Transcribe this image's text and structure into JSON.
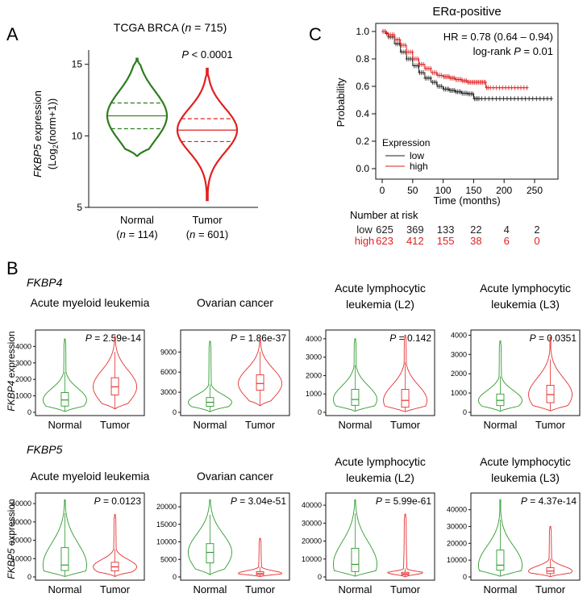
{
  "colors": {
    "normal": "#2e7d1e",
    "tumor": "#e02020",
    "km_low": "#222222",
    "km_high": "#e02020",
    "small_green": "#2f9a2f",
    "small_red": "#e53030"
  },
  "panel_a": {
    "label": "A",
    "title_prefix": "TCGA BRCA (",
    "title_n": "n",
    "title_suffix": " = 715)",
    "ylabel_gene": "FKBP5",
    "ylabel_rest": " expression",
    "ylabel_line2_a": "(Log",
    "ylabel_line2_sub": "2",
    "ylabel_line2_b": "(norm+1))",
    "p_label": "P",
    "p_value": " < 0.0001",
    "groups": [
      {
        "name": "Normal",
        "n_open": "(",
        "n_italic": "n",
        "n_rest": " = 114)"
      },
      {
        "name": "Tumor",
        "n_open": "(",
        "n_italic": "n",
        "n_rest": " = 601)"
      }
    ]
  },
  "panel_b": {
    "label": "B",
    "row_labels": [
      "FKBP4",
      "FKBP5"
    ],
    "ylabel_suffix": " expression",
    "xlabels": [
      "Normal",
      "Tumor"
    ]
  },
  "panel_c": {
    "label": "C",
    "title": "ERα-positive",
    "hr_text": "HR = 0.78 (0.64 – 0.94)",
    "logrank_prefix": "log-rank ",
    "logrank_p": "P",
    "logrank_value": " = 0.01",
    "legend_title": "Expression",
    "risk_title": "Number at risk",
    "risk_rows": [
      {
        "name": "low",
        "values": [
          "625",
          "369",
          "133",
          "22",
          "4",
          "2"
        ]
      },
      {
        "name": "high",
        "values": [
          "623",
          "412",
          "155",
          "38",
          "6",
          "0"
        ]
      }
    ]
  },
  "chart_data": [
    {
      "type": "violin",
      "id": "A",
      "title": "TCGA BRCA (n = 715)",
      "ylabel": "FKBP5 expression (Log2(norm+1))",
      "ylim": [
        5,
        16
      ],
      "yticks": [
        "5",
        "10",
        "15"
      ],
      "ytick_values": [
        5,
        10,
        15
      ],
      "categories": [
        "Normal",
        "Tumor"
      ],
      "series": [
        {
          "name": "Normal",
          "median": 11.4,
          "q1": 10.5,
          "q3": 12.3,
          "min": 8.6,
          "max": 15.4
        },
        {
          "name": "Tumor",
          "median": 10.4,
          "q1": 9.6,
          "q3": 11.2,
          "min": 5.5,
          "max": 14.7
        }
      ],
      "annotation": "P < 0.0001"
    },
    {
      "type": "line",
      "id": "C",
      "title": "ERα-positive",
      "xlabel": "Time (months)",
      "ylabel": "Probability",
      "xlim": [
        0,
        285
      ],
      "ylim": [
        0,
        1
      ],
      "xticks": [
        "0",
        "50",
        "100",
        "150",
        "200",
        "250"
      ],
      "xtick_values": [
        0,
        50,
        100,
        150,
        200,
        250
      ],
      "yticks": [
        "0.0",
        "0.2",
        "0.4",
        "0.6",
        "0.8",
        "1.0"
      ],
      "ytick_values": [
        0,
        0.2,
        0.4,
        0.6,
        0.8,
        1.0
      ],
      "legend": [
        "low",
        "high"
      ],
      "series": [
        {
          "name": "low",
          "x": [
            0,
            5,
            10,
            20,
            30,
            40,
            50,
            60,
            70,
            80,
            90,
            100,
            110,
            120,
            130,
            140,
            150,
            170,
            200,
            250,
            280
          ],
          "y": [
            1.0,
            0.985,
            0.96,
            0.91,
            0.85,
            0.8,
            0.75,
            0.7,
            0.66,
            0.63,
            0.6,
            0.58,
            0.57,
            0.56,
            0.55,
            0.545,
            0.51,
            0.51,
            0.51,
            0.51,
            0.51
          ]
        },
        {
          "name": "high",
          "x": [
            0,
            5,
            10,
            20,
            30,
            40,
            50,
            60,
            70,
            80,
            90,
            100,
            110,
            120,
            130,
            140,
            150,
            160,
            170,
            200,
            240
          ],
          "y": [
            1.0,
            0.99,
            0.975,
            0.94,
            0.9,
            0.85,
            0.8,
            0.76,
            0.73,
            0.7,
            0.68,
            0.67,
            0.66,
            0.65,
            0.64,
            0.63,
            0.63,
            0.63,
            0.59,
            0.59,
            0.59
          ]
        }
      ]
    },
    {
      "type": "violin",
      "id": "B1",
      "gene": "FKBP4",
      "title_lines": [
        "Acute myeloid leukemia"
      ],
      "p_label": "P",
      "p_value": " = 2.59e-14",
      "ylim": [
        0,
        4800
      ],
      "yticks": [
        "0",
        "1000",
        "2000",
        "3000",
        "4000"
      ],
      "ytick_values": [
        0,
        1000,
        2000,
        3000,
        4000
      ],
      "categories": [
        "Normal",
        "Tumor"
      ],
      "series": [
        {
          "name": "Normal",
          "median": 750,
          "q1": 380,
          "q3": 1200,
          "min": 60,
          "max": 4450
        },
        {
          "name": "Tumor",
          "median": 1550,
          "q1": 1050,
          "q3": 2100,
          "min": 220,
          "max": 4600
        }
      ]
    },
    {
      "type": "violin",
      "id": "B2",
      "gene": "FKBP4",
      "title_lines": [
        "Ovarian cancer"
      ],
      "p_label": "P",
      "p_value": " = 1.86e-37",
      "ylim": [
        0,
        11800
      ],
      "yticks": [
        "0",
        "3000",
        "6000",
        "9000"
      ],
      "ytick_values": [
        0,
        3000,
        6000,
        9000
      ],
      "categories": [
        "Normal",
        "Tumor"
      ],
      "series": [
        {
          "name": "Normal",
          "median": 1500,
          "q1": 900,
          "q3": 2200,
          "min": 100,
          "max": 10600
        },
        {
          "name": "Tumor",
          "median": 4300,
          "q1": 3300,
          "q3": 5600,
          "min": 1000,
          "max": 11000
        }
      ]
    },
    {
      "type": "violin",
      "id": "B3",
      "gene": "FKBP4",
      "title_lines": [
        "Acute lymphocytic",
        "leukemia (L2)"
      ],
      "p_label": "P",
      "p_value": " = 0.142",
      "ylim": [
        0,
        4300
      ],
      "yticks": [
        "0",
        "1000",
        "2000",
        "3000",
        "4000"
      ],
      "ytick_values": [
        0,
        1000,
        2000,
        3000,
        4000
      ],
      "categories": [
        "Normal",
        "Tumor"
      ],
      "series": [
        {
          "name": "Normal",
          "median": 700,
          "q1": 380,
          "q3": 1250,
          "min": 70,
          "max": 4000
        },
        {
          "name": "Tumor",
          "median": 650,
          "q1": 280,
          "q3": 1250,
          "min": 40,
          "max": 4200
        }
      ]
    },
    {
      "type": "violin",
      "id": "B4",
      "gene": "FKBP4",
      "title_lines": [
        "Acute lymphocytic",
        "leukemia (L3)"
      ],
      "p_label": "P",
      "p_value": " = 0.0351",
      "ylim": [
        0,
        4100
      ],
      "yticks": [
        "0",
        "1000",
        "2000",
        "3000",
        "4000"
      ],
      "ytick_values": [
        0,
        1000,
        2000,
        3000,
        4000
      ],
      "categories": [
        "Normal",
        "Tumor"
      ],
      "series": [
        {
          "name": "Normal",
          "median": 620,
          "q1": 350,
          "q3": 950,
          "min": 60,
          "max": 3700
        },
        {
          "name": "Tumor",
          "median": 920,
          "q1": 500,
          "q3": 1400,
          "min": 80,
          "max": 3900
        }
      ]
    },
    {
      "type": "violin",
      "id": "B5",
      "gene": "FKBP5",
      "title_lines": [
        "Acute myeloid leukemia"
      ],
      "p_label": "P",
      "p_value": " = 0.0123",
      "ylim": [
        0,
        44000
      ],
      "yticks": [
        "0",
        "10000",
        "20000",
        "30000",
        "40000"
      ],
      "ytick_values": [
        0,
        10000,
        20000,
        30000,
        40000
      ],
      "categories": [
        "Normal",
        "Tumor"
      ],
      "series": [
        {
          "name": "Normal",
          "median": 6500,
          "q1": 3500,
          "q3": 16000,
          "min": 300,
          "max": 42000
        },
        {
          "name": "Tumor",
          "median": 5500,
          "q1": 3300,
          "q3": 8000,
          "min": 300,
          "max": 34000
        }
      ]
    },
    {
      "type": "violin",
      "id": "B6",
      "gene": "FKBP5",
      "title_lines": [
        "Ovarian cancer"
      ],
      "p_label": "P",
      "p_value": " = 3.04e-51",
      "ylim": [
        0,
        23000
      ],
      "yticks": [
        "0",
        "5000",
        "10000",
        "15000",
        "20000"
      ],
      "ytick_values": [
        0,
        5000,
        10000,
        15000,
        20000
      ],
      "categories": [
        "Normal",
        "Tumor"
      ],
      "series": [
        {
          "name": "Normal",
          "median": 7000,
          "q1": 4000,
          "q3": 9500,
          "min": 700,
          "max": 22000
        },
        {
          "name": "Tumor",
          "median": 1000,
          "q1": 600,
          "q3": 1500,
          "min": 100,
          "max": 11000
        }
      ]
    },
    {
      "type": "violin",
      "id": "B7",
      "gene": "FKBP5",
      "title_lines": [
        "Acute lymphocytic",
        "leukemia (L2)"
      ],
      "p_label": "P",
      "p_value": " = 5.99e-61",
      "ylim": [
        0,
        45000
      ],
      "yticks": [
        "0",
        "10000",
        "20000",
        "30000",
        "40000"
      ],
      "ytick_values": [
        0,
        10000,
        20000,
        30000,
        40000
      ],
      "categories": [
        "Normal",
        "Tumor"
      ],
      "series": [
        {
          "name": "Normal",
          "median": 7000,
          "q1": 3000,
          "q3": 16000,
          "min": 500,
          "max": 43000
        },
        {
          "name": "Tumor",
          "median": 1800,
          "q1": 1200,
          "q3": 2600,
          "min": 100,
          "max": 35000
        }
      ]
    },
    {
      "type": "violin",
      "id": "B8",
      "gene": "FKBP5",
      "title_lines": [
        "Acute lymphocytic",
        "leukemia (L3)"
      ],
      "p_label": "P",
      "p_value": " = 4.37e-14",
      "ylim": [
        0,
        48000
      ],
      "yticks": [
        "0",
        "10000",
        "20000",
        "30000",
        "40000"
      ],
      "ytick_values": [
        0,
        10000,
        20000,
        30000,
        40000
      ],
      "categories": [
        "Normal",
        "Tumor"
      ],
      "series": [
        {
          "name": "Normal",
          "median": 7000,
          "q1": 4000,
          "q3": 16000,
          "min": 500,
          "max": 46000
        },
        {
          "name": "Tumor",
          "median": 3500,
          "q1": 2000,
          "q3": 5500,
          "min": 200,
          "max": 30000
        }
      ]
    }
  ]
}
